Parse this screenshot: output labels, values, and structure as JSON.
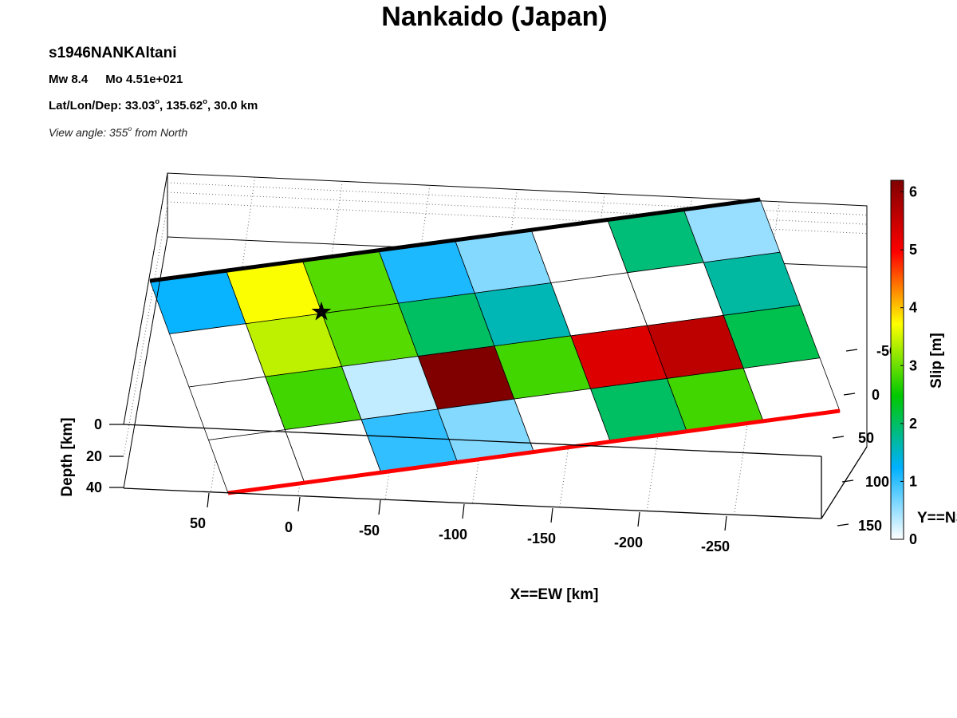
{
  "header": {
    "title": "Nankaido (Japan)",
    "event_id": "s1946NANKAltani",
    "mw": "Mw 8.4",
    "mo": "Mo 4.51e+021",
    "lat_lon_dep_prefix": "Lat/Lon/Dep: 33.03",
    "lat_lon_dep_mid": ", 135.62",
    "lat_lon_dep_suffix": ", 30.0 km",
    "degree_mark": "o",
    "view_prefix": "View angle: 355",
    "view_suffix": " from North"
  },
  "chart_data": {
    "type": "heatmap",
    "title": "Nankaido (Japan)",
    "xlabel": "X==EW [km]",
    "ylabel": "Y==NS [km]",
    "zlabel": "Depth [km]",
    "colorbar_label": "Slip [m]",
    "x_ticks": [
      "50",
      "0",
      "-50",
      "-100",
      "-150",
      "-200",
      "-250"
    ],
    "y_ticks": [
      "-50",
      "0",
      "50",
      "100",
      "150"
    ],
    "z_ticks": [
      "0",
      "20",
      "40"
    ],
    "colorbar_ticks": [
      "0",
      "1",
      "2",
      "3",
      "4",
      "5",
      "6"
    ],
    "colorbar_range": [
      0,
      6.2
    ],
    "colormap": [
      "#ffffff",
      "#00b0ff",
      "#00c800",
      "#ffff00",
      "#ff0000",
      "#800000"
    ],
    "hypocenter_star": true,
    "top_edge_color": "#000000",
    "bottom_edge_color": "#ff0000",
    "slip_grid_rows_top_to_bottom": [
      [
        1.2,
        3.7,
        2.9,
        1.1,
        0.6,
        0.0,
        1.9,
        0.5
      ],
      [
        0.0,
        3.4,
        2.9,
        2.0,
        1.6,
        0.0,
        0.0,
        1.7
      ],
      [
        0.0,
        2.8,
        0.3,
        6.2,
        2.8,
        5.3,
        5.6,
        2.1
      ],
      [
        0.0,
        0.0,
        1.0,
        0.6,
        0.0,
        2.0,
        2.8,
        0.0
      ]
    ]
  }
}
